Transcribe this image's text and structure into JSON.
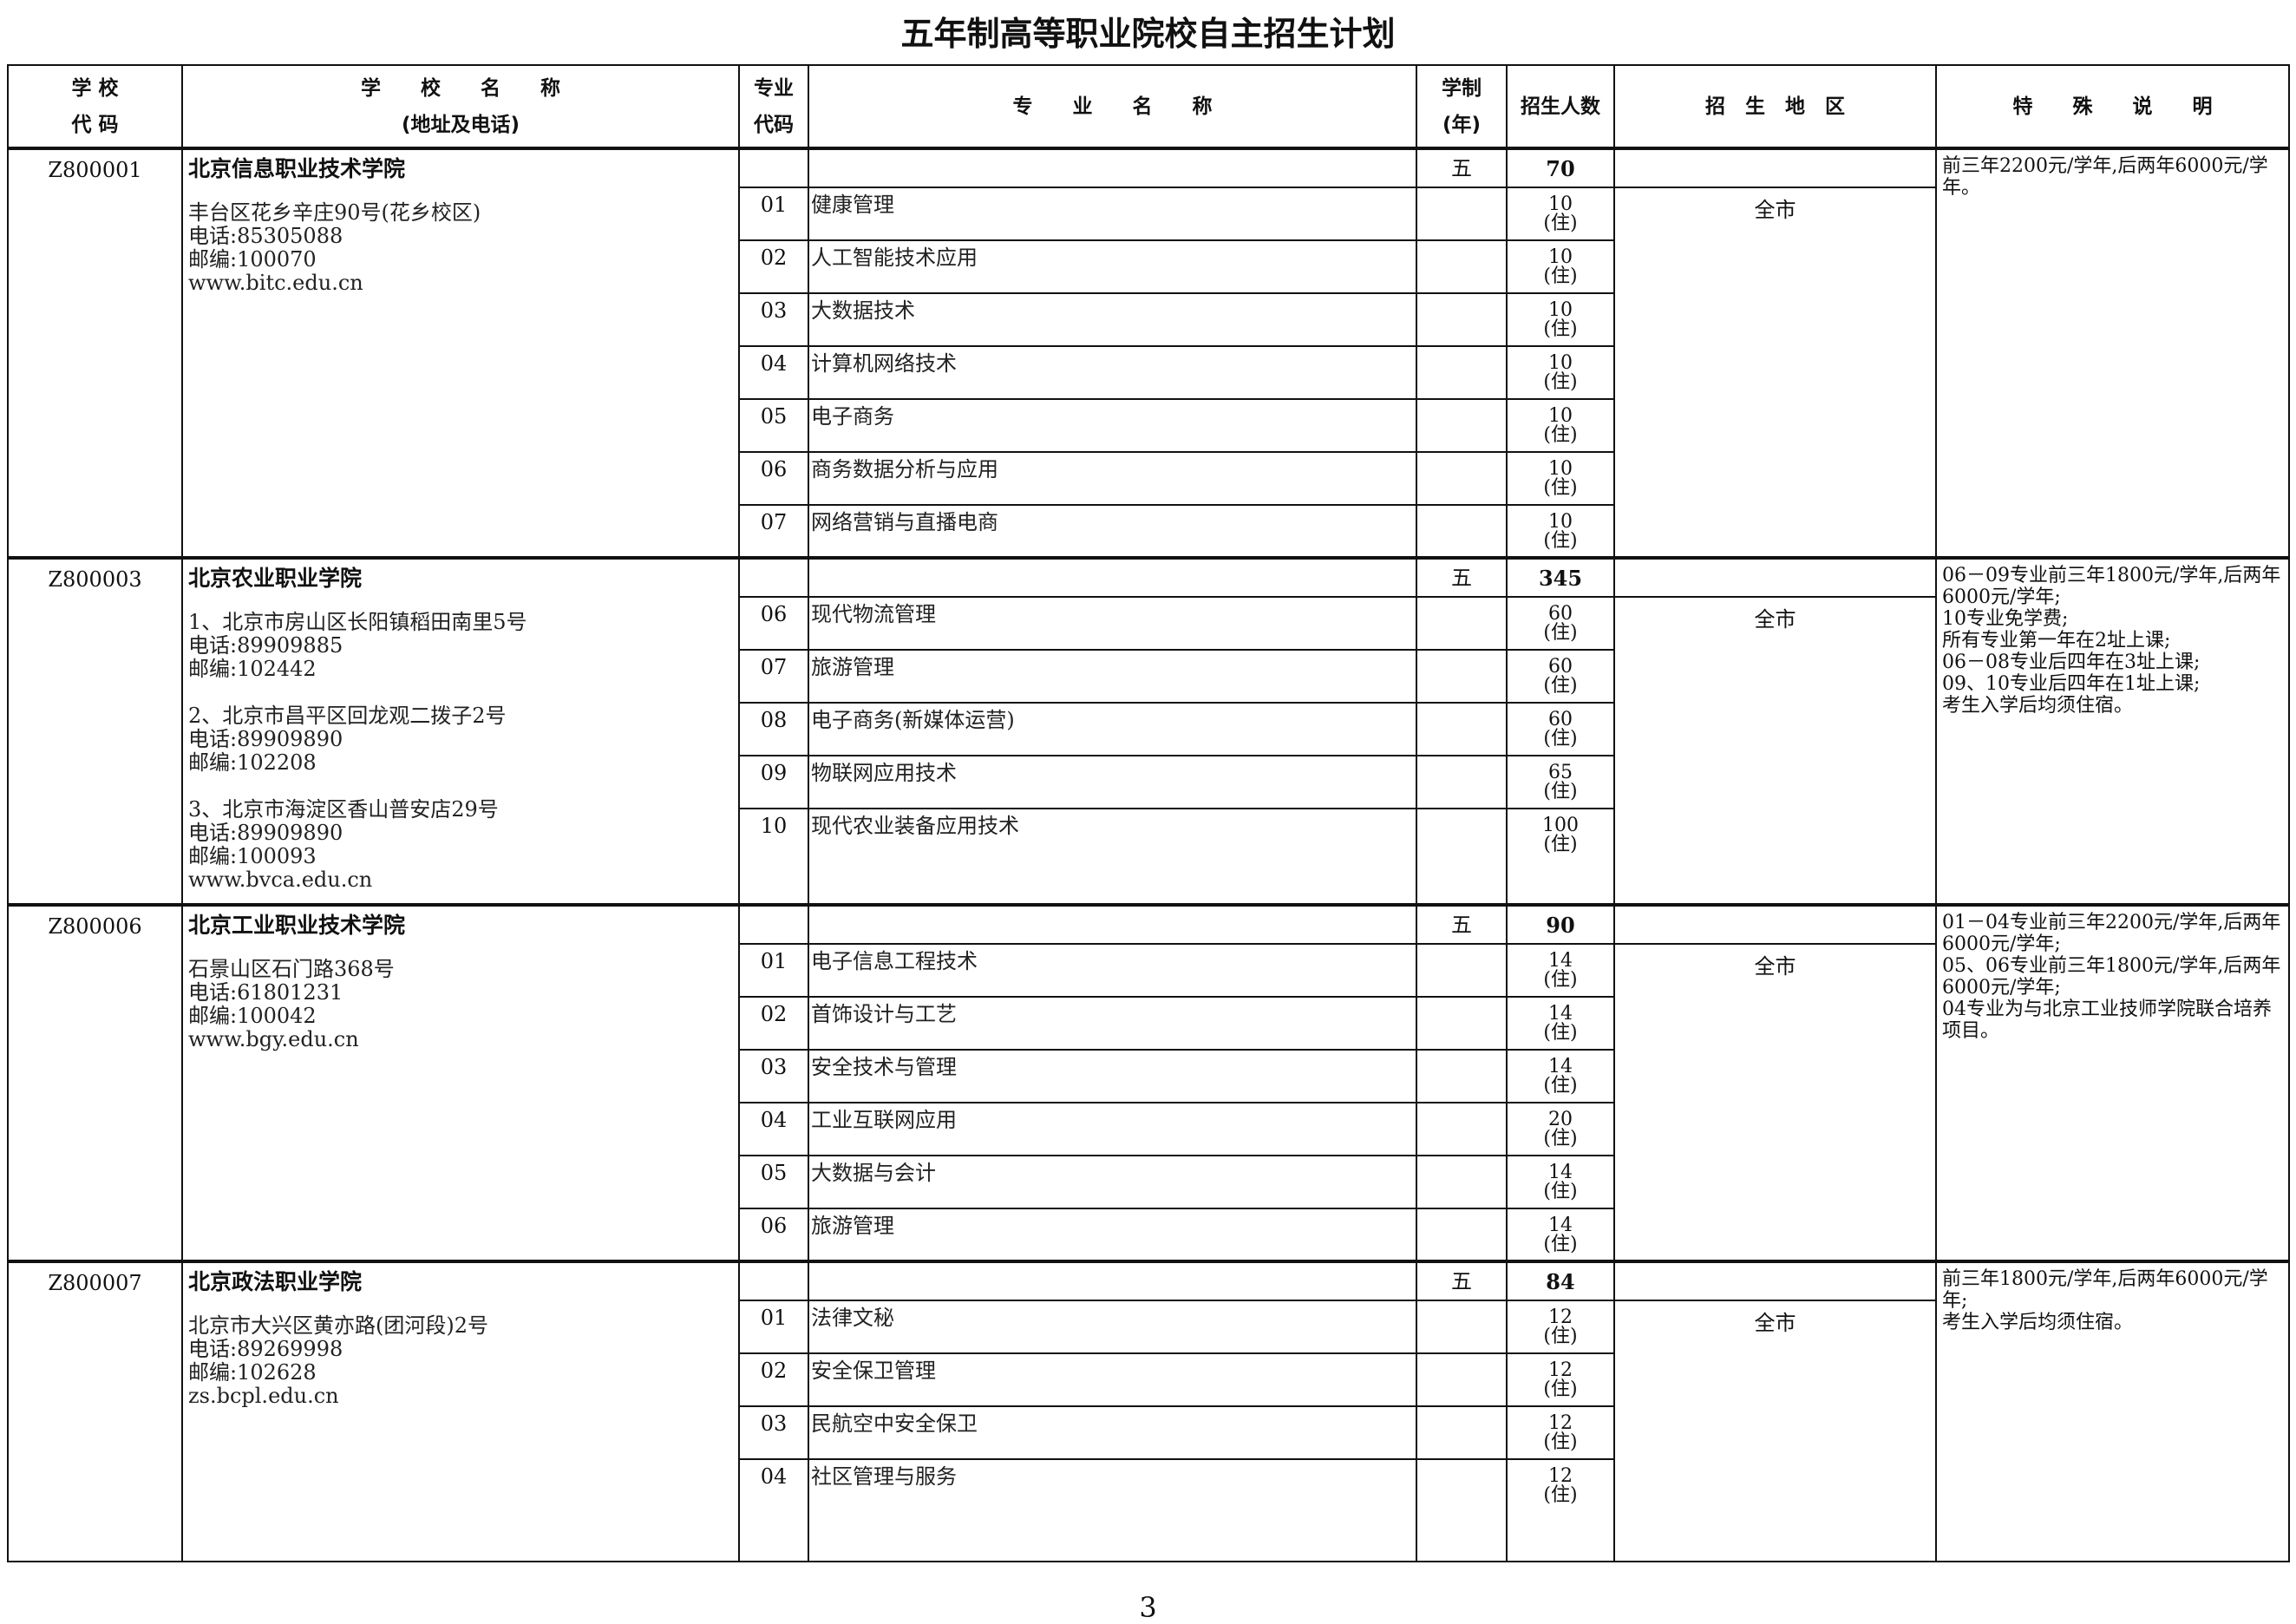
{
  "title": "五年制高等职业院校自主招生计划",
  "page_number": "3",
  "headers": {
    "school_code": "学 校\n代 码",
    "school_name": "学　　校　　名　　称\n(地址及电话)",
    "major_code": "专业\n代码",
    "major_name": "专　　业　　名　　称",
    "years": "学制\n(年)",
    "enrollment": "招生人数",
    "region": "招　生　地　区",
    "notes": "特　　殊　　说　　明"
  },
  "schools": [
    {
      "code": "Z800001",
      "name": "北京信息职业技术学院",
      "addresses": [
        "丰台区花乡辛庄90号(花乡校区)\n电话:85305088\n邮编:100070\nwww.bitc.edu.cn"
      ],
      "years": "五",
      "total": "70",
      "region": "全市",
      "notes": "前三年2200元/学年,后两年6000元/学年。",
      "majors": [
        {
          "code": "01",
          "name": "健康管理",
          "count": "10",
          "note": "(住)"
        },
        {
          "code": "02",
          "name": "人工智能技术应用",
          "count": "10",
          "note": "(住)"
        },
        {
          "code": "03",
          "name": "大数据技术",
          "count": "10",
          "note": "(住)"
        },
        {
          "code": "04",
          "name": "计算机网络技术",
          "count": "10",
          "note": "(住)"
        },
        {
          "code": "05",
          "name": "电子商务",
          "count": "10",
          "note": "(住)"
        },
        {
          "code": "06",
          "name": "商务数据分析与应用",
          "count": "10",
          "note": "(住)"
        },
        {
          "code": "07",
          "name": "网络营销与直播电商",
          "count": "10",
          "note": "(住)"
        }
      ]
    },
    {
      "code": "Z800003",
      "name": "北京农业职业学院",
      "addresses": [
        "1、北京市房山区长阳镇稻田南里5号\n电话:89909885\n邮编:102442",
        "2、北京市昌平区回龙观二拨子2号\n电话:89909890\n邮编:102208",
        "3、北京市海淀区香山普安店29号\n电话:89909890\n邮编:100093\nwww.bvca.edu.cn"
      ],
      "years": "五",
      "total": "345",
      "region": "全市",
      "notes": "06－09专业前三年1800元/学年,后两年6000元/学年;\n10专业免学费;\n所有专业第一年在2址上课;\n06－08专业后四年在3址上课;\n09、10专业后四年在1址上课;\n考生入学后均须住宿。",
      "majors": [
        {
          "code": "06",
          "name": "现代物流管理",
          "count": "60",
          "note": "(住)"
        },
        {
          "code": "07",
          "name": "旅游管理",
          "count": "60",
          "note": "(住)"
        },
        {
          "code": "08",
          "name": "电子商务(新媒体运营)",
          "count": "60",
          "note": "(住)"
        },
        {
          "code": "09",
          "name": "物联网应用技术",
          "count": "65",
          "note": "(住)"
        },
        {
          "code": "10",
          "name": "现代农业装备应用技术",
          "count": "100",
          "note": "(住)"
        }
      ]
    },
    {
      "code": "Z800006",
      "name": "北京工业职业技术学院",
      "addresses": [
        "石景山区石门路368号\n电话:61801231\n邮编:100042\nwww.bgy.edu.cn"
      ],
      "years": "五",
      "total": "90",
      "region": "全市",
      "notes": "01－04专业前三年2200元/学年,后两年6000元/学年;\n05、06专业前三年1800元/学年,后两年6000元/学年;\n04专业为与北京工业技师学院联合培养项目。",
      "majors": [
        {
          "code": "01",
          "name": "电子信息工程技术",
          "count": "14",
          "note": "(住)"
        },
        {
          "code": "02",
          "name": "首饰设计与工艺",
          "count": "14",
          "note": "(住)"
        },
        {
          "code": "03",
          "name": "安全技术与管理",
          "count": "14",
          "note": "(住)"
        },
        {
          "code": "04",
          "name": "工业互联网应用",
          "count": "20",
          "note": "(住)"
        },
        {
          "code": "05",
          "name": "大数据与会计",
          "count": "14",
          "note": "(住)"
        },
        {
          "code": "06",
          "name": "旅游管理",
          "count": "14",
          "note": "(住)"
        }
      ]
    },
    {
      "code": "Z800007",
      "name": "北京政法职业学院",
      "addresses": [
        "北京市大兴区黄亦路(团河段)2号\n电话:89269998\n邮编:102628\nzs.bcpl.edu.cn"
      ],
      "years": "五",
      "total": "84",
      "region": "全市",
      "notes": "前三年1800元/学年,后两年6000元/学年;\n考生入学后均须住宿。",
      "majors": [
        {
          "code": "01",
          "name": "法律文秘",
          "count": "12",
          "note": "(住)"
        },
        {
          "code": "02",
          "name": "安全保卫管理",
          "count": "12",
          "note": "(住)"
        },
        {
          "code": "03",
          "name": "民航空中安全保卫",
          "count": "12",
          "note": "(住)"
        },
        {
          "code": "04",
          "name": "社区管理与服务",
          "count": "12",
          "note": "(住)"
        }
      ]
    }
  ]
}
